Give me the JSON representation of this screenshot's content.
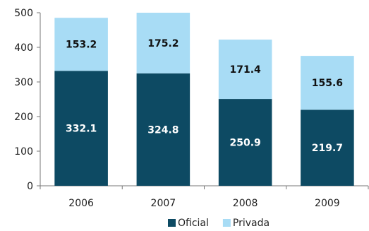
{
  "chart_data": {
    "type": "bar",
    "stacked": true,
    "categories": [
      "2006",
      "2007",
      "2008",
      "2009"
    ],
    "series": [
      {
        "name": "Oficial",
        "values": [
          332.1,
          324.8,
          250.9,
          219.7
        ],
        "color": "#0d4a63",
        "label_color": "#ffffff"
      },
      {
        "name": "Privada",
        "values": [
          153.2,
          175.2,
          171.4,
          155.6
        ],
        "color": "#a8dcf5",
        "label_color": "#111111"
      }
    ],
    "ylim": [
      0,
      500
    ],
    "yticks": [
      0,
      100,
      200,
      300,
      400,
      500
    ],
    "grid": false,
    "legend": "bottom",
    "title": "",
    "xlabel": "",
    "ylabel": ""
  }
}
